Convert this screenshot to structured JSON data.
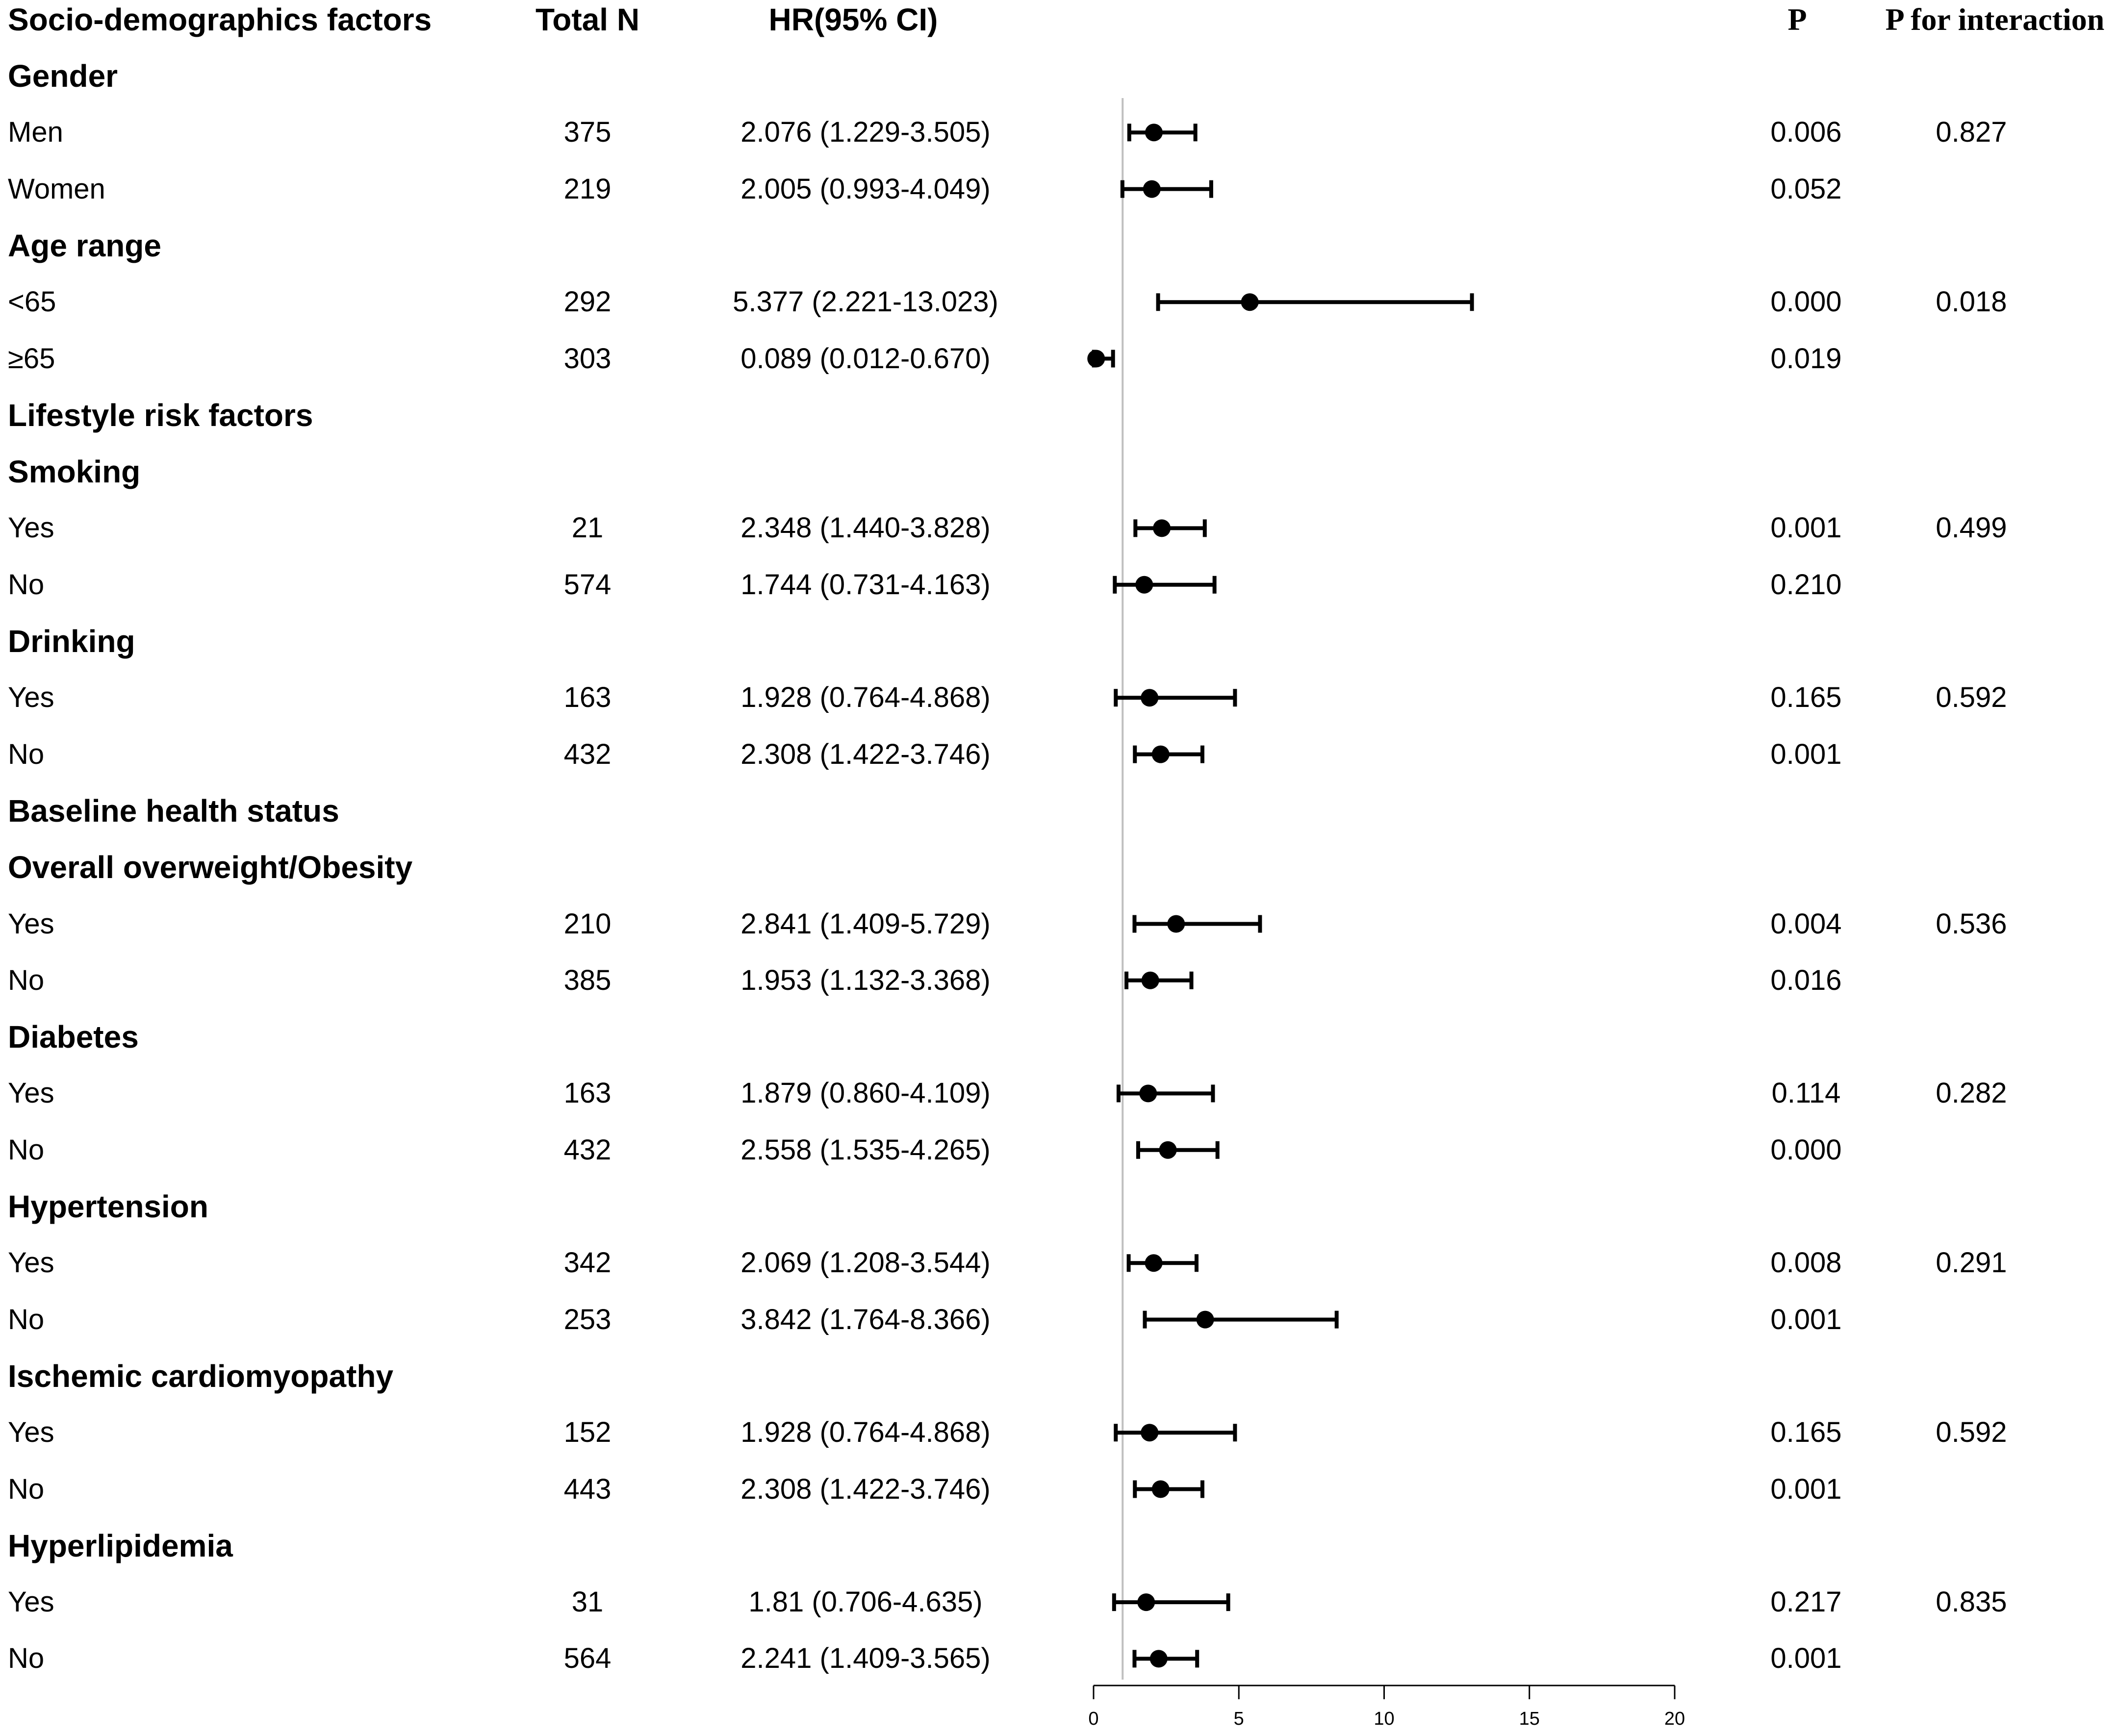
{
  "headers": {
    "factor": "Socio-demographics factors",
    "total_n": "Total N",
    "hr": "HR(95% CI)",
    "p": "P",
    "p_interaction": "P for interaction"
  },
  "rows": [
    {
      "type": "group",
      "label": "Gender"
    },
    {
      "type": "item",
      "label": "Men",
      "n": "375",
      "hr_text": "2.076 (1.229-3.505)",
      "p": "0.006",
      "p_int": "0.827"
    },
    {
      "type": "item",
      "label": "Women",
      "n": "219",
      "hr_text": "2.005 (0.993-4.049)",
      "p": "0.052",
      "p_int": ""
    },
    {
      "type": "group",
      "label": "Age range"
    },
    {
      "type": "item",
      "label": "<65",
      "n": "292",
      "hr_text": "5.377 (2.221-13.023)",
      "p": "0.000",
      "p_int": "0.018"
    },
    {
      "type": "item",
      "label": "≥65",
      "n": "303",
      "hr_text": "0.089 (0.012-0.670)",
      "p": "0.019",
      "p_int": ""
    },
    {
      "type": "group",
      "label": "Lifestyle risk factors"
    },
    {
      "type": "group",
      "label": "Smoking"
    },
    {
      "type": "item",
      "label": "Yes",
      "n": "21",
      "hr_text": "2.348 (1.440-3.828)",
      "p": "0.001",
      "p_int": "0.499"
    },
    {
      "type": "item",
      "label": "No",
      "n": "574",
      "hr_text": "1.744 (0.731-4.163)",
      "p": "0.210",
      "p_int": ""
    },
    {
      "type": "group",
      "label": "Drinking"
    },
    {
      "type": "item",
      "label": "Yes",
      "n": "163",
      "hr_text": "1.928 (0.764-4.868)",
      "p": "0.165",
      "p_int": "0.592"
    },
    {
      "type": "item",
      "label": "No",
      "n": "432",
      "hr_text": "2.308 (1.422-3.746)",
      "p": "0.001",
      "p_int": ""
    },
    {
      "type": "group",
      "label": "Baseline health status"
    },
    {
      "type": "group",
      "label": "Overall overweight/Obesity"
    },
    {
      "type": "item",
      "label": "Yes",
      "n": "210",
      "hr_text": "2.841 (1.409-5.729)",
      "p": "0.004",
      "p_int": "0.536"
    },
    {
      "type": "item",
      "label": "No",
      "n": "385",
      "hr_text": "1.953 (1.132-3.368)",
      "p": "0.016",
      "p_int": ""
    },
    {
      "type": "group",
      "label": "Diabetes"
    },
    {
      "type": "item",
      "label": "Yes",
      "n": "163",
      "hr_text": "1.879 (0.860-4.109)",
      "p": "0.114",
      "p_int": "0.282"
    },
    {
      "type": "item",
      "label": "No",
      "n": "432",
      "hr_text": "2.558 (1.535-4.265)",
      "p": "0.000",
      "p_int": ""
    },
    {
      "type": "group",
      "label": "Hypertension"
    },
    {
      "type": "item",
      "label": "Yes",
      "n": "342",
      "hr_text": "2.069 (1.208-3.544)",
      "p": "0.008",
      "p_int": "0.291"
    },
    {
      "type": "item",
      "label": "No",
      "n": "253",
      "hr_text": "3.842 (1.764-8.366)",
      "p": "0.001",
      "p_int": ""
    },
    {
      "type": "group",
      "label": "Ischemic cardiomyopathy"
    },
    {
      "type": "item",
      "label": "Yes",
      "n": "152",
      "hr_text": "1.928 (0.764-4.868)",
      "p": "0.165",
      "p_int": "0.592"
    },
    {
      "type": "item",
      "label": "No",
      "n": "443",
      "hr_text": "2.308 (1.422-3.746)",
      "p": "0.001",
      "p_int": ""
    },
    {
      "type": "group",
      "label": "Hyperlipidemia"
    },
    {
      "type": "item",
      "label": "Yes",
      "n": "31",
      "hr_text": "1.81 (0.706-4.635)",
      "p": "0.217",
      "p_int": "0.835"
    },
    {
      "type": "item",
      "label": "No",
      "n": "564",
      "hr_text": "2.241 (1.409-3.565)",
      "p": "0.001",
      "p_int": ""
    }
  ],
  "chart_data": {
    "type": "scatter",
    "subtype": "forest",
    "reference_line": 1,
    "xlim": [
      0,
      20
    ],
    "x_ticks": [
      0,
      5,
      10,
      15,
      20
    ],
    "grid": false,
    "series": [
      {
        "points": [
          {
            "label": "Men",
            "hr": 2.076,
            "lo": 1.229,
            "hi": 3.505
          },
          {
            "label": "Women",
            "hr": 2.005,
            "lo": 0.993,
            "hi": 4.049
          },
          {
            "label": "<65",
            "hr": 5.377,
            "lo": 2.221,
            "hi": 13.023
          },
          {
            "label": "≥65",
            "hr": 0.089,
            "lo": 0.012,
            "hi": 0.67
          },
          {
            "label": "Yes",
            "hr": 2.348,
            "lo": 1.44,
            "hi": 3.828
          },
          {
            "label": "No",
            "hr": 1.744,
            "lo": 0.731,
            "hi": 4.163
          },
          {
            "label": "Yes",
            "hr": 1.928,
            "lo": 0.764,
            "hi": 4.868
          },
          {
            "label": "No",
            "hr": 2.308,
            "lo": 1.422,
            "hi": 3.746
          },
          {
            "label": "Yes",
            "hr": 2.841,
            "lo": 1.409,
            "hi": 5.729
          },
          {
            "label": "No",
            "hr": 1.953,
            "lo": 1.132,
            "hi": 3.368
          },
          {
            "label": "Yes",
            "hr": 1.879,
            "lo": 0.86,
            "hi": 4.109
          },
          {
            "label": "No",
            "hr": 2.558,
            "lo": 1.535,
            "hi": 4.265
          },
          {
            "label": "Yes",
            "hr": 2.069,
            "lo": 1.208,
            "hi": 3.544
          },
          {
            "label": "No",
            "hr": 3.842,
            "lo": 1.764,
            "hi": 8.366
          },
          {
            "label": "Yes",
            "hr": 1.928,
            "lo": 0.764,
            "hi": 4.868
          },
          {
            "label": "No",
            "hr": 2.308,
            "lo": 1.422,
            "hi": 3.746
          },
          {
            "label": "Yes",
            "hr": 1.81,
            "lo": 0.706,
            "hi": 4.635
          },
          {
            "label": "No",
            "hr": 2.241,
            "lo": 1.409,
            "hi": 3.565
          }
        ]
      }
    ],
    "colors": {
      "marks": "#000000",
      "reference_line": "#c0c0c0"
    }
  }
}
